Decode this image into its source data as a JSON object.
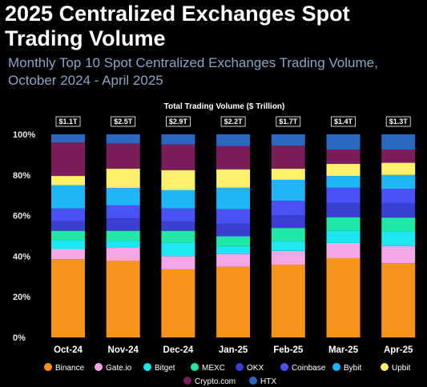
{
  "title": "2025 Centralized Exchanges Spot Trading Volume",
  "subtitle": "Monthly Top 10 Spot Centralized Exchanges Trading Volume, October 2024 - April 2025",
  "chart_data": {
    "type": "bar",
    "stacked": true,
    "normalized": true,
    "annotation": "Total Trading Volume ($ Trillion)",
    "categories": [
      "Oct-24",
      "Nov-24",
      "Dec-24",
      "Jan-25",
      "Feb-25",
      "Mar-25",
      "Apr-25"
    ],
    "totals": [
      "$1.1T",
      "$2.5T",
      "$2.9T",
      "$2.2T",
      "$1.7T",
      "$1.4T",
      "$1.3T"
    ],
    "yticks": [
      "0%",
      "20%",
      "40%",
      "60%",
      "80%",
      "100%"
    ],
    "ylim": [
      0,
      100
    ],
    "series": [
      {
        "name": "Binance",
        "color": "#f7931a",
        "values": [
          38.5,
          37.8,
          33.5,
          34.8,
          35.8,
          39.0,
          36.5
        ]
      },
      {
        "name": "Gate.io",
        "color": "#f4a6e6",
        "values": [
          5.0,
          6.3,
          6.5,
          6.2,
          6.8,
          7.5,
          8.5
        ]
      },
      {
        "name": "Bitget",
        "color": "#1de7f0",
        "values": [
          4.5,
          3.5,
          6.8,
          4.0,
          4.8,
          6.0,
          7.2
        ]
      },
      {
        "name": "MEXC",
        "color": "#21e8a8",
        "values": [
          4.5,
          4.9,
          5.7,
          4.8,
          6.5,
          6.7,
          6.8
        ]
      },
      {
        "name": "OKX",
        "color": "#3b3fd1",
        "values": [
          5.0,
          6.1,
          4.5,
          6.2,
          6.2,
          7.0,
          7.0
        ]
      },
      {
        "name": "Coinbase",
        "color": "#4b52f5",
        "values": [
          6.0,
          6.4,
          6.5,
          7.1,
          7.2,
          7.5,
          7.2
        ]
      },
      {
        "name": "Bybit",
        "color": "#1eb6f5",
        "values": [
          11.5,
          8.6,
          9.0,
          10.6,
          10.3,
          5.8,
          6.8
        ]
      },
      {
        "name": "Upbit",
        "color": "#fff06b",
        "values": [
          4.5,
          9.5,
          9.9,
          9.1,
          5.5,
          6.0,
          6.0
        ]
      },
      {
        "name": "Crypto.com",
        "color": "#7a1d5a",
        "values": [
          16.5,
          12.4,
          12.6,
          11.4,
          11.3,
          7.0,
          6.5
        ]
      },
      {
        "name": "HTX",
        "color": "#2b69c0",
        "values": [
          4.0,
          4.5,
          5.0,
          5.8,
          5.6,
          7.5,
          7.5
        ]
      }
    ]
  }
}
